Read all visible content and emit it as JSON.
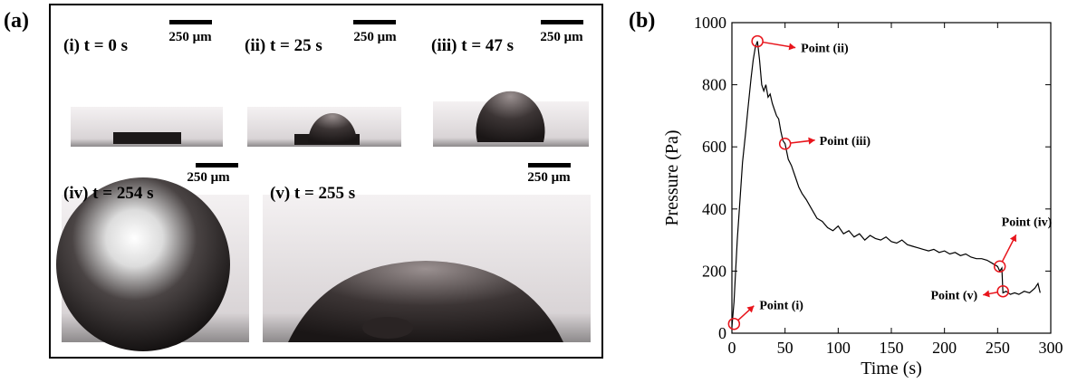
{
  "figure": {
    "panel_a_label": "(a)",
    "panel_b_label": "(b)",
    "photos": [
      {
        "caption": "(i) t = 0 s",
        "scale": "250 μm"
      },
      {
        "caption": "(ii) t = 25 s",
        "scale": "250 μm"
      },
      {
        "caption": "(iii) t = 47 s",
        "scale": "250 μm"
      },
      {
        "caption": "(iv) t = 254 s",
        "scale": "250 μm"
      },
      {
        "caption": "(v) t = 255 s",
        "scale": "250 μm"
      }
    ]
  },
  "chart_data": {
    "type": "line",
    "xlabel": "Time (s)",
    "ylabel": "Pressure (Pa)",
    "color": "#000000",
    "x": [
      0,
      2,
      5,
      8,
      10,
      13,
      15,
      18,
      20,
      22,
      24,
      26,
      28,
      30,
      32,
      34,
      36,
      38,
      40,
      42,
      44,
      46,
      48,
      50,
      53,
      56,
      60,
      63,
      66,
      70,
      75,
      80,
      85,
      90,
      95,
      100,
      105,
      110,
      115,
      120,
      125,
      130,
      135,
      140,
      145,
      150,
      155,
      160,
      165,
      170,
      175,
      180,
      185,
      190,
      195,
      200,
      205,
      210,
      215,
      220,
      225,
      230,
      235,
      240,
      245,
      250,
      252,
      254,
      255,
      258,
      262,
      266,
      270,
      275,
      280,
      285,
      288,
      290
    ],
    "values": [
      20,
      100,
      300,
      450,
      550,
      650,
      720,
      820,
      880,
      920,
      940,
      880,
      800,
      780,
      800,
      760,
      770,
      740,
      720,
      700,
      690,
      650,
      620,
      610,
      560,
      540,
      500,
      470,
      450,
      430,
      400,
      370,
      360,
      340,
      330,
      345,
      320,
      330,
      310,
      320,
      300,
      315,
      305,
      300,
      310,
      295,
      290,
      300,
      285,
      280,
      275,
      270,
      265,
      270,
      260,
      265,
      255,
      260,
      250,
      255,
      245,
      240,
      240,
      235,
      225,
      215,
      200,
      210,
      130,
      135,
      125,
      130,
      125,
      135,
      130,
      145,
      160,
      130
    ],
    "xlim": [
      0,
      300
    ],
    "ylim": [
      0,
      1000
    ],
    "xticks": [
      0,
      50,
      100,
      150,
      200,
      250,
      300
    ],
    "yticks": [
      0,
      200,
      400,
      600,
      800,
      1000
    ],
    "annotation_color": "#e8141b",
    "annotations": [
      {
        "text": "Point (i)",
        "x": 2,
        "y": 30
      },
      {
        "text": "Point (ii)",
        "x": 24,
        "y": 940
      },
      {
        "text": "Point (iii)",
        "x": 50,
        "y": 610
      },
      {
        "text": "Point (iv)",
        "x": 252,
        "y": 215
      },
      {
        "text": "Point (v)",
        "x": 255,
        "y": 135
      }
    ]
  }
}
